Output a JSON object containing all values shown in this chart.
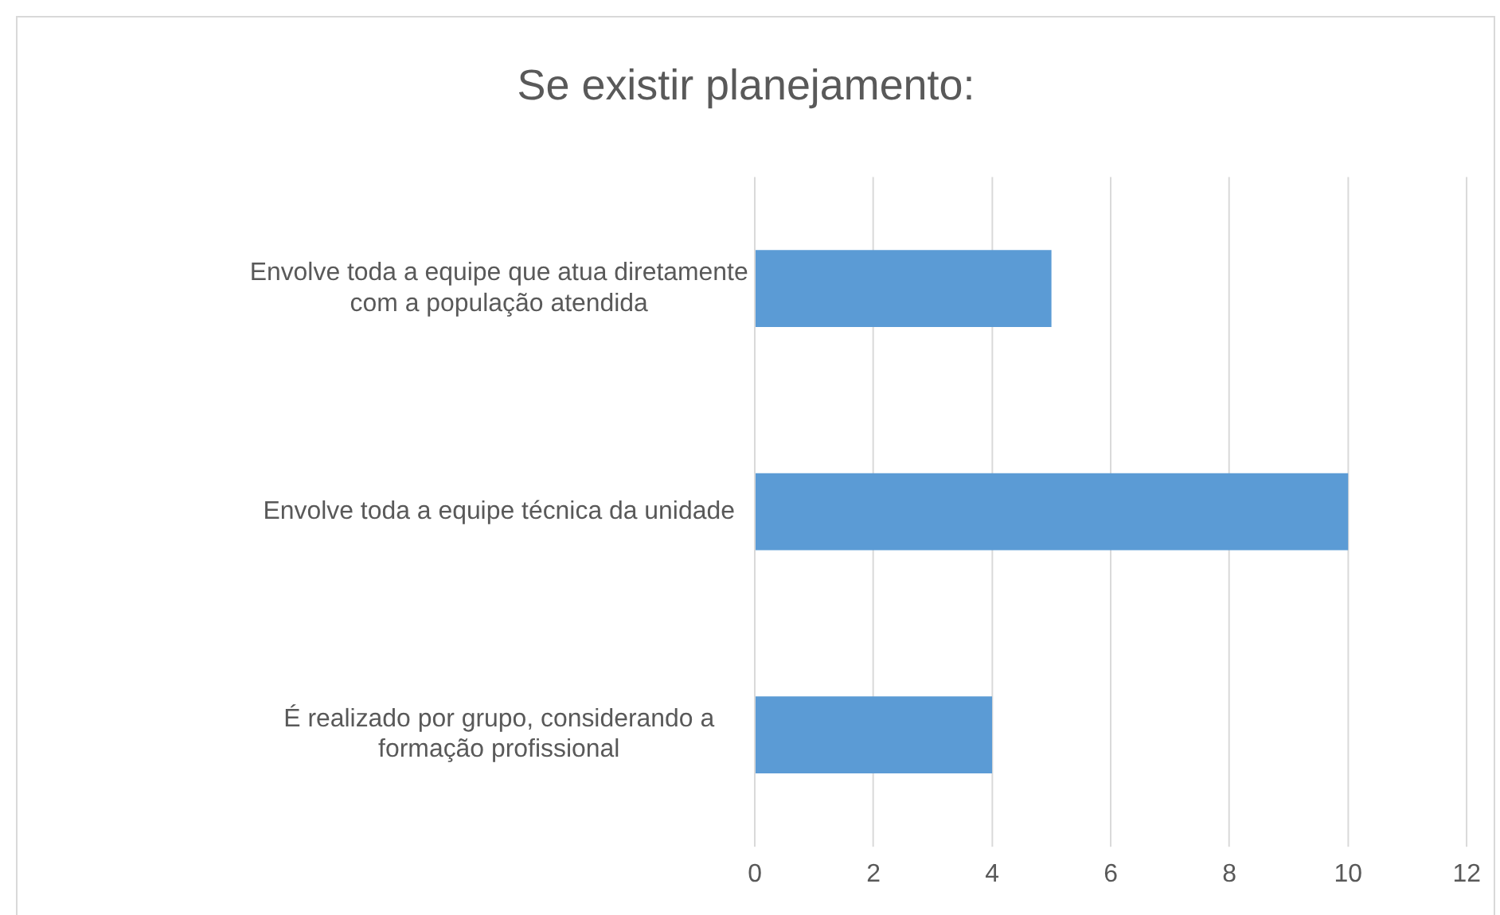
{
  "chart_data": {
    "type": "bar",
    "orientation": "horizontal",
    "title": "Se existir planejamento:",
    "categories": [
      "Envolve toda a equipe que atua diretamente com a população atendida",
      "Envolve toda a equipe técnica da unidade",
      "É realizado por grupo, considerando a formação profissional"
    ],
    "values": [
      5,
      10,
      4
    ],
    "color": "#5b9bd5",
    "xlim": [
      0,
      12
    ],
    "xticks": [
      0,
      2,
      4,
      6,
      8,
      10,
      12
    ],
    "grid": "x",
    "legend": false
  }
}
